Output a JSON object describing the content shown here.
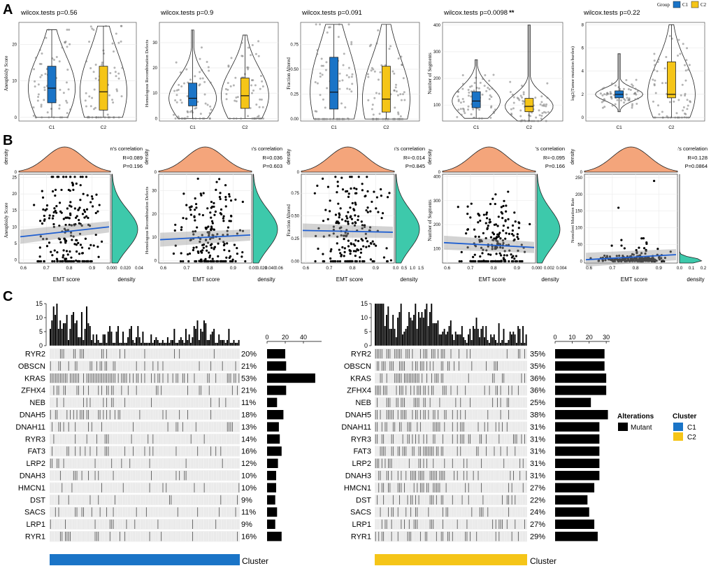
{
  "legend_top": {
    "title": "Group",
    "items": [
      {
        "label": "C1",
        "color": "#1a74c7"
      },
      {
        "label": "C2",
        "color": "#f5c518"
      }
    ]
  },
  "panel_labels": {
    "A": "A",
    "B": "B",
    "C": "C"
  },
  "colors": {
    "c1": "#1a74c7",
    "c2": "#f5c518",
    "orange": "#f4a57b",
    "teal": "#3dc9ab",
    "line": "#1f5fd1",
    "bar": "#000000"
  },
  "chart_data": [
    {
      "id": "A1",
      "type": "violin-box",
      "title": "wilcox.tests p=0.56",
      "ylabel": "Aneuploidy Score",
      "categories": [
        "C1",
        "C2"
      ],
      "yticks": [
        "0",
        "10",
        "20"
      ],
      "ylim": [
        -1,
        26
      ],
      "groups": [
        {
          "name": "C1",
          "median": 8,
          "q1": 4,
          "q3": 14,
          "min": 0,
          "max": 24
        },
        {
          "name": "C2",
          "median": 7,
          "q1": 2,
          "q3": 14,
          "min": 0,
          "max": 25
        }
      ]
    },
    {
      "id": "A2",
      "type": "violin-box",
      "title": "wilcox.tests p=0.9",
      "ylabel": "Homologous Recombination Defects",
      "categories": [
        "C1",
        "C2"
      ],
      "yticks": [
        "0",
        "10",
        "20",
        "30"
      ],
      "ylim": [
        -1,
        38
      ],
      "groups": [
        {
          "name": "C1",
          "median": 8,
          "q1": 5,
          "q3": 14,
          "min": 0,
          "max": 35
        },
        {
          "name": "C2",
          "median": 9,
          "q1": 4,
          "q3": 16,
          "min": 0,
          "max": 33
        }
      ]
    },
    {
      "id": "A3",
      "type": "violin-box",
      "title": "wilcox.tests p=0.091",
      "ylabel": "Fraction Altered",
      "categories": [
        "C1",
        "C2"
      ],
      "yticks": [
        "0.00",
        "0.25",
        "0.50",
        "0.75"
      ],
      "ylim": [
        -0.02,
        0.97
      ],
      "groups": [
        {
          "name": "C1",
          "median": 0.27,
          "q1": 0.1,
          "q3": 0.62,
          "min": 0,
          "max": 0.95
        },
        {
          "name": "C2",
          "median": 0.2,
          "q1": 0.07,
          "q3": 0.53,
          "min": 0,
          "max": 0.95
        }
      ]
    },
    {
      "id": "A4",
      "type": "violin-box",
      "title": "wilcox.tests p=0.0098",
      "significance": "**",
      "ylabel": "Number of Segments",
      "categories": [
        "C1",
        "C2"
      ],
      "yticks": [
        "100",
        "200",
        "300",
        "400"
      ],
      "ylim": [
        40,
        410
      ],
      "groups": [
        {
          "name": "C1",
          "median": 115,
          "q1": 90,
          "q3": 150,
          "min": 50,
          "max": 270
        },
        {
          "name": "C2",
          "median": 95,
          "q1": 75,
          "q3": 125,
          "min": 40,
          "max": 400
        }
      ]
    },
    {
      "id": "A5",
      "type": "violin-box",
      "title": "wilcox.tests p=0.22",
      "ylabel": "log2(Tumor mutation burden)",
      "categories": [
        "C1",
        "C2"
      ],
      "yticks": [
        "0",
        "2",
        "4",
        "6",
        "8"
      ],
      "ylim": [
        -0.3,
        8.2
      ],
      "groups": [
        {
          "name": "C1",
          "median": 2,
          "q1": 1.7,
          "q3": 2.3,
          "min": 0.5,
          "max": 5.5
        },
        {
          "name": "C2",
          "median": 2,
          "q1": 1.7,
          "q3": 4.8,
          "min": 0,
          "max": 8
        }
      ]
    },
    {
      "id": "B1",
      "type": "scatter-marginal",
      "xlabel": "EMT score",
      "ylabel": "Aneuploidy Score",
      "density_label": "density",
      "corr_label": "Pearson's correlation",
      "r": "R=0.089",
      "p": "P=0.196",
      "xticks": [
        "0.6",
        "0.7",
        "0.8",
        "0.9"
      ],
      "xlim": [
        0.58,
        0.98
      ],
      "yticks": [
        "0",
        "5",
        "10",
        "15",
        "20",
        "25"
      ],
      "ylim": [
        -1,
        26
      ],
      "dticks": [
        "0.000",
        "0.020",
        "0.04"
      ],
      "fit": [
        7,
        10
      ]
    },
    {
      "id": "B2",
      "type": "scatter-marginal",
      "xlabel": "EMT score",
      "ylabel": "Homologous Recombination Defects",
      "density_label": "density",
      "corr_label": "Pearson's correlation",
      "r": "R=0.036",
      "p": "P=0.603",
      "xticks": [
        "0.6",
        "0.7",
        "0.8",
        "0.9"
      ],
      "xlim": [
        0.58,
        0.98
      ],
      "yticks": [
        "0",
        "10",
        "20",
        "30"
      ],
      "ylim": [
        -1,
        37
      ],
      "dticks": [
        "0.00",
        "0.020",
        "0.040",
        "0.06"
      ],
      "fit": [
        9,
        11
      ]
    },
    {
      "id": "B3",
      "type": "scatter-marginal",
      "xlabel": "EMT score",
      "ylabel": "Fraction Altered",
      "density_label": "density",
      "corr_label": "Pearson's correlation",
      "r": "R=-0.014",
      "p": "P=0.845",
      "xticks": [
        "0.6",
        "0.7",
        "0.8",
        "0.9"
      ],
      "xlim": [
        0.58,
        0.98
      ],
      "yticks": [
        "0.00",
        "0.25",
        "0.50",
        "0.75"
      ],
      "ylim": [
        -0.02,
        0.96
      ],
      "dticks": [
        "0.0",
        "0.5",
        "1.0",
        "1.5"
      ],
      "fit": [
        0.34,
        0.32
      ]
    },
    {
      "id": "B4",
      "type": "scatter-marginal",
      "xlabel": "EMT score",
      "ylabel": "Number of Segments",
      "density_label": "density",
      "corr_label": "Pearson's correlation",
      "r": "R=-0.095",
      "p": "P=0.166",
      "xticks": [
        "0.6",
        "0.7",
        "0.8",
        "0.9"
      ],
      "xlim": [
        0.58,
        0.98
      ],
      "yticks": [
        "100",
        "200",
        "300",
        "400"
      ],
      "ylim": [
        40,
        410
      ],
      "dticks": [
        "0.000",
        "0.002",
        "0.004"
      ],
      "fit": [
        125,
        105
      ]
    },
    {
      "id": "B5",
      "type": "scatter-marginal",
      "xlabel": "EMT score",
      "ylabel": "Nonsilent Mutation Rate",
      "density_label": "density",
      "corr_label": "Pearson's correlation",
      "r": "R=0.128",
      "p": "P=0.0864",
      "xticks": [
        "0.6",
        "0.7",
        "0.8",
        "0.9"
      ],
      "xlim": [
        0.58,
        0.98
      ],
      "yticks": [
        "0",
        "50",
        "100",
        "150",
        "200",
        "250"
      ],
      "ylim": [
        -5,
        260
      ],
      "dticks": [
        "0.0",
        "0.1",
        "0.2"
      ],
      "fit": [
        5,
        20
      ]
    },
    {
      "id": "C1",
      "type": "oncoprint",
      "cluster": "C1",
      "cluster_label": "Cluster",
      "cluster_color": "#1a74c7",
      "top_yticks": [
        "0",
        "5",
        "10",
        "15"
      ],
      "bar_axis": [
        "0",
        "20",
        "40"
      ],
      "bar_max": 60,
      "genes": [
        "RYR2",
        "OBSCN",
        "KRAS",
        "ZFHX4",
        "NEB",
        "DNAH5",
        "DNAH11",
        "RYR3",
        "FAT3",
        "LRP2",
        "DNAH3",
        "HMCN1",
        "DST",
        "SACS",
        "LRP1",
        "RYR1"
      ],
      "percents": [
        "20%",
        "21%",
        "53%",
        "21%",
        "11%",
        "18%",
        "13%",
        "14%",
        "16%",
        "12%",
        "10%",
        "10%",
        "9%",
        "11%",
        "9%",
        "16%"
      ],
      "counts": [
        20,
        21,
        53,
        21,
        11,
        18,
        13,
        14,
        16,
        12,
        10,
        10,
        9,
        11,
        9,
        16
      ]
    },
    {
      "id": "C2",
      "type": "oncoprint",
      "cluster": "C2",
      "cluster_label": "Cluster",
      "cluster_color": "#f5c518",
      "top_yticks": [
        "0",
        "5",
        "10",
        "15"
      ],
      "bar_axis": [
        "0",
        "10",
        "20",
        "30"
      ],
      "bar_max": 32,
      "genes": [
        "RYR2",
        "OBSCN",
        "KRAS",
        "ZFHX4",
        "NEB",
        "DNAH5",
        "DNAH11",
        "RYR3",
        "FAT3",
        "LRP2",
        "DNAH3",
        "HMCN1",
        "DST",
        "SACS",
        "LRP1",
        "RYR1"
      ],
      "percents": [
        "35%",
        "35%",
        "36%",
        "36%",
        "25%",
        "38%",
        "31%",
        "31%",
        "31%",
        "31%",
        "31%",
        "27%",
        "22%",
        "24%",
        "27%",
        "29%"
      ],
      "counts": [
        29,
        29,
        30,
        30,
        21,
        31,
        26,
        26,
        26,
        26,
        26,
        23,
        19,
        20,
        23,
        25
      ]
    }
  ],
  "legend_bottom": {
    "alterations_title": "Alterations",
    "mutant_label": "Mutant",
    "cluster_title": "Cluster",
    "c1_label": "C1",
    "c2_label": "C2"
  }
}
